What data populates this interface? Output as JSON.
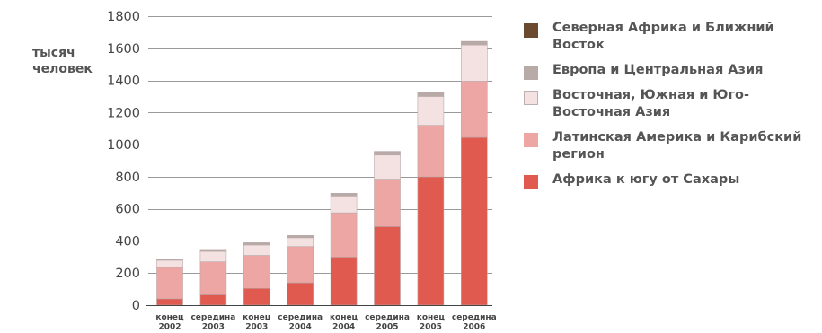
{
  "chart_data": {
    "type": "bar",
    "stacked": true,
    "ylabel": "тысяч\nчеловек",
    "ylim": [
      0,
      1800
    ],
    "yticks": [
      0,
      200,
      400,
      600,
      800,
      1000,
      1200,
      1400,
      1600,
      1800
    ],
    "categories": [
      [
        "конец",
        "2002"
      ],
      [
        "середина",
        "2003"
      ],
      [
        "конец",
        "2003"
      ],
      [
        "середина",
        "2004"
      ],
      [
        "конец",
        "2004"
      ],
      [
        "середина",
        "2005"
      ],
      [
        "конец",
        "2005"
      ],
      [
        "середина",
        "2006"
      ]
    ],
    "series": [
      {
        "name": "Африка к югу от Сахары",
        "color": "#e15a50",
        "values": [
          40,
          65,
          105,
          140,
          300,
          490,
          800,
          1045
        ]
      },
      {
        "name": "Латинская Америка и Карибский регион",
        "color": "#eda6a4",
        "values": [
          195,
          205,
          205,
          225,
          275,
          295,
          320,
          350
        ]
      },
      {
        "name": "Восточная, Южная и Юго-Восточная Азия",
        "color": "#f4e2e2",
        "values": [
          45,
          65,
          65,
          55,
          105,
          150,
          180,
          225
        ]
      },
      {
        "name": "Европа и Центральная Азия",
        "color": "#b8aaa6",
        "values": [
          5,
          10,
          12,
          12,
          15,
          20,
          20,
          20
        ]
      },
      {
        "name": "Северная Африка и Ближний Восток",
        "color": "#6b4a2f",
        "values": [
          1,
          2,
          2,
          2,
          2,
          3,
          3,
          3
        ]
      }
    ],
    "legend_position": "right",
    "grid": true
  }
}
